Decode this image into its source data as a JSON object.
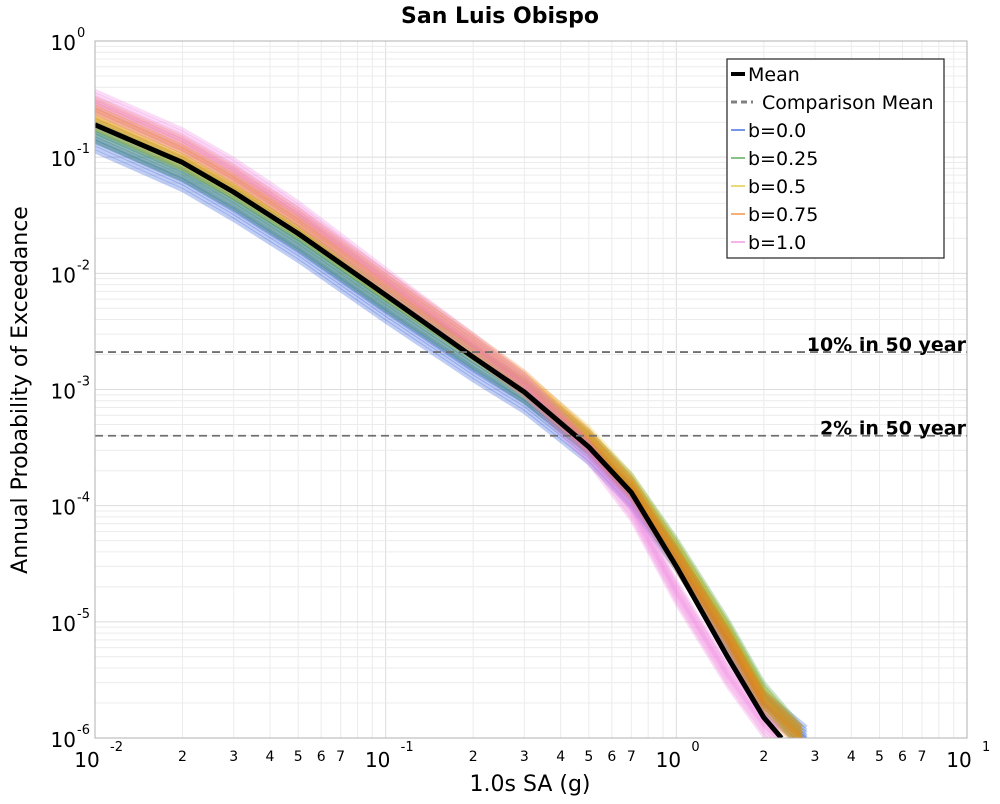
{
  "chart_data": {
    "type": "line",
    "title": "San Luis Obispo",
    "xlabel": "1.0s SA (g)",
    "ylabel": "Annual Probability of Exceedance",
    "xscale": "log",
    "yscale": "log",
    "xlim": [
      0.01,
      10
    ],
    "ylim": [
      1e-06,
      1
    ],
    "grid": true,
    "x_major_ticks": [
      {
        "value": 0.01,
        "base": "10",
        "exp": "-2"
      },
      {
        "value": 0.1,
        "base": "10",
        "exp": "-1"
      },
      {
        "value": 1,
        "base": "10",
        "exp": "0"
      },
      {
        "value": 10,
        "base": "10",
        "exp": "1"
      }
    ],
    "x_minor_tick_labels": [
      "2",
      "3",
      "4",
      "5",
      "6",
      "7"
    ],
    "y_major_ticks": [
      {
        "value": 1e-06,
        "base": "10",
        "exp": "-6"
      },
      {
        "value": 1e-05,
        "base": "10",
        "exp": "-5"
      },
      {
        "value": 0.0001,
        "base": "10",
        "exp": "-4"
      },
      {
        "value": 0.001,
        "base": "10",
        "exp": "-3"
      },
      {
        "value": 0.01,
        "base": "10",
        "exp": "-2"
      },
      {
        "value": 0.1,
        "base": "10",
        "exp": "-1"
      },
      {
        "value": 1,
        "base": "10",
        "exp": "0"
      }
    ],
    "series": [
      {
        "name": "Mean",
        "style": "solid",
        "color": "#000000",
        "x": [
          0.01,
          0.02,
          0.03,
          0.05,
          0.1,
          0.2,
          0.3,
          0.5,
          0.7,
          1.0,
          1.5,
          2.0,
          2.3
        ],
        "y": [
          0.19,
          0.09,
          0.05,
          0.022,
          0.0065,
          0.0019,
          0.00095,
          0.00032,
          0.00013,
          3e-05,
          5e-06,
          1.5e-06,
          1e-06
        ]
      },
      {
        "name": "b=0.0",
        "style": "band",
        "color": "#1f4fd8",
        "x": [
          0.01,
          0.02,
          0.03,
          0.05,
          0.1,
          0.2,
          0.3,
          0.5,
          0.7,
          1.0,
          1.5,
          2.0,
          2.8
        ],
        "y": [
          0.14,
          0.065,
          0.036,
          0.016,
          0.0048,
          0.0015,
          0.0008,
          0.00029,
          0.00012,
          3.5e-05,
          7e-06,
          2e-06,
          1e-06
        ]
      },
      {
        "name": "b=0.25",
        "style": "band",
        "color": "#3a9a3a",
        "x": [
          0.01,
          0.02,
          0.03,
          0.05,
          0.1,
          0.2,
          0.3,
          0.5,
          0.7,
          1.0,
          1.5,
          2.0,
          2.7
        ],
        "y": [
          0.17,
          0.08,
          0.045,
          0.02,
          0.006,
          0.0019,
          0.00098,
          0.00035,
          0.00015,
          4.2e-05,
          8.5e-06,
          2.4e-06,
          1e-06
        ]
      },
      {
        "name": "b=0.5",
        "style": "band",
        "color": "#e0c020",
        "x": [
          0.01,
          0.02,
          0.03,
          0.05,
          0.1,
          0.2,
          0.3,
          0.5,
          0.7,
          1.0,
          1.5,
          2.0,
          2.7
        ],
        "y": [
          0.22,
          0.1,
          0.057,
          0.026,
          0.0076,
          0.0023,
          0.0011,
          0.00038,
          0.00015,
          4e-05,
          8e-06,
          2.2e-06,
          1e-06
        ]
      },
      {
        "name": "b=0.75",
        "style": "band",
        "color": "#f07a1a",
        "x": [
          0.01,
          0.02,
          0.03,
          0.05,
          0.1,
          0.2,
          0.3,
          0.5,
          0.7,
          1.0,
          1.5,
          2.0,
          2.7
        ],
        "y": [
          0.26,
          0.12,
          0.067,
          0.029,
          0.0083,
          0.0024,
          0.00115,
          0.00036,
          0.00014,
          3.5e-05,
          7e-06,
          2e-06,
          1e-06
        ]
      },
      {
        "name": "b=1.0",
        "style": "band",
        "color": "#f080e0",
        "x": [
          0.01,
          0.02,
          0.03,
          0.05,
          0.1,
          0.2,
          0.3,
          0.5,
          0.7,
          1.0,
          1.5,
          2.0,
          2.25
        ],
        "y": [
          0.3,
          0.14,
          0.078,
          0.033,
          0.0088,
          0.0024,
          0.0011,
          0.00029,
          9.5e-05,
          1.8e-05,
          3.5e-06,
          1.3e-06,
          1e-06
        ]
      }
    ],
    "reference_lines": [
      {
        "label": "10% in 50 year",
        "y": 0.0021
      },
      {
        "label": "2% in 50 year",
        "y": 0.0004
      }
    ],
    "legend": {
      "position": "top-right",
      "entries": [
        {
          "label": "Mean",
          "style": "solid",
          "color": "#000000"
        },
        {
          "label": "Comparison Mean",
          "style": "dashed",
          "color": "#808080"
        },
        {
          "label": "b=0.0",
          "style": "thin",
          "color": "#1f4fd8"
        },
        {
          "label": "b=0.25",
          "style": "thin",
          "color": "#3a9a3a"
        },
        {
          "label": "b=0.5",
          "style": "thin",
          "color": "#e0c020"
        },
        {
          "label": "b=0.75",
          "style": "thin",
          "color": "#f07a1a"
        },
        {
          "label": "b=1.0",
          "style": "thin",
          "color": "#f080e0"
        }
      ]
    }
  }
}
